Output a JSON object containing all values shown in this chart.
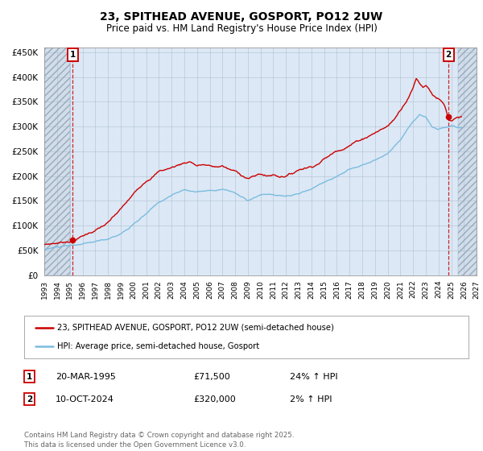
{
  "title": "23, SPITHEAD AVENUE, GOSPORT, PO12 2UW",
  "subtitle": "Price paid vs. HM Land Registry's House Price Index (HPI)",
  "legend_line1": "23, SPITHEAD AVENUE, GOSPORT, PO12 2UW (semi-detached house)",
  "legend_line2": "HPI: Average price, semi-detached house, Gosport",
  "point1_date": "20-MAR-1995",
  "point1_price": "£71,500",
  "point1_hpi": "24% ↑ HPI",
  "point2_date": "10-OCT-2024",
  "point2_price": "£320,000",
  "point2_hpi": "2% ↑ HPI",
  "copyright": "Contains HM Land Registry data © Crown copyright and database right 2025.\nThis data is licensed under the Open Government Licence v3.0.",
  "hpi_color": "#7bbce0",
  "price_color": "#cc0000",
  "background_color": "#ffffff",
  "plot_bg_color": "#dce8f5",
  "grid_color": "#aabbcc",
  "ylim": [
    0,
    460000
  ],
  "yticks": [
    0,
    50000,
    100000,
    150000,
    200000,
    250000,
    300000,
    350000,
    400000,
    450000
  ],
  "xlim_start": 1993.0,
  "xlim_end": 2027.0,
  "xticks": [
    1993,
    1994,
    1995,
    1996,
    1997,
    1998,
    1999,
    2000,
    2001,
    2002,
    2003,
    2004,
    2005,
    2006,
    2007,
    2008,
    2009,
    2010,
    2011,
    2012,
    2013,
    2014,
    2015,
    2016,
    2017,
    2018,
    2019,
    2020,
    2021,
    2022,
    2023,
    2024,
    2025,
    2026,
    2027
  ],
  "p1_x": 1995.22,
  "p1_y": 71500,
  "p2_x": 2024.78,
  "p2_y": 320000
}
